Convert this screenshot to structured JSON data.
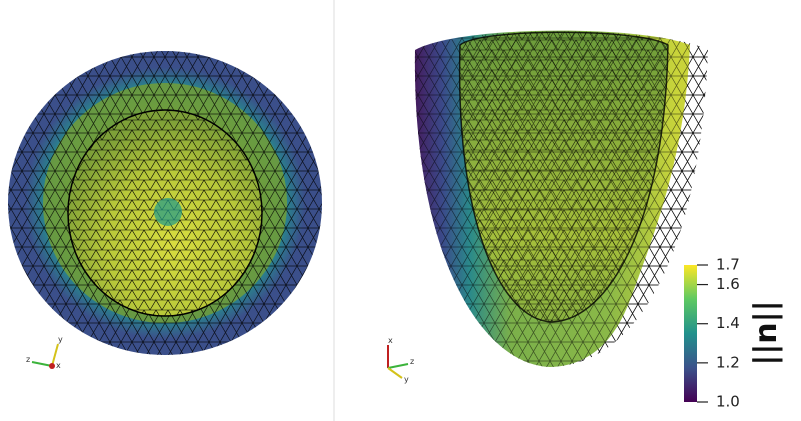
{
  "colorbar": {
    "title": "||u||",
    "lim": [
      1,
      1.7
    ],
    "ticks": [
      {
        "value": 1,
        "label": "1.0"
      },
      1.2,
      1.4,
      1.6,
      1.7
    ],
    "colormap": [
      "#440154",
      "#3b528b",
      "#21918c",
      "#5ec962",
      "#fde725"
    ]
  },
  "left_view": {
    "axes": [
      "x",
      "y",
      "z"
    ]
  },
  "right_view": {
    "axes": [
      "x",
      "y",
      "z"
    ]
  }
}
